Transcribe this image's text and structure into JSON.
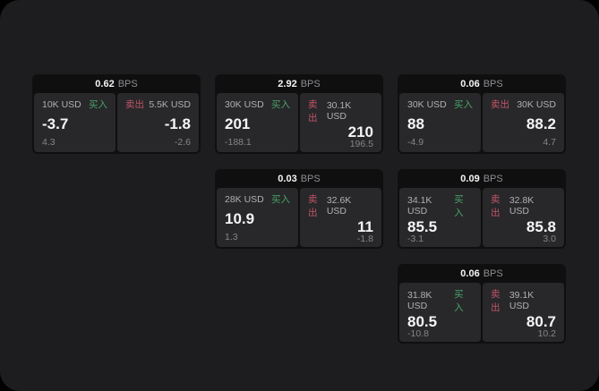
{
  "colors": {
    "surface": "#1d1d1f",
    "card": "#0f0f10",
    "panel": "#28282a",
    "label": "#b0b0b4",
    "value": "#f5f5f7",
    "sub": "#85858a",
    "bps": "#8e8e93",
    "buy": "#48a268",
    "sell": "#c25368"
  },
  "labels": {
    "bps_unit": "BPS",
    "buy": "买入",
    "sell": "卖出"
  },
  "cards": [
    {
      "row": 1,
      "col": 1,
      "bps": "0.62",
      "buy": {
        "amount": "10K USD",
        "price": "-3.7",
        "sub": "4.3"
      },
      "sell": {
        "amount": "5.5K USD",
        "price": "-1.8",
        "sub": "-2.6"
      }
    },
    {
      "row": 1,
      "col": 2,
      "bps": "2.92",
      "buy": {
        "amount": "30K USD",
        "price": "201",
        "sub": "-188.1"
      },
      "sell": {
        "amount": "30.1K USD",
        "price": "210",
        "sub": "196.5"
      }
    },
    {
      "row": 1,
      "col": 3,
      "bps": "0.06",
      "buy": {
        "amount": "30K USD",
        "price": "88",
        "sub": "-4.9"
      },
      "sell": {
        "amount": "30K USD",
        "price": "88.2",
        "sub": "4.7"
      }
    },
    {
      "row": 2,
      "col": 2,
      "bps": "0.03",
      "buy": {
        "amount": "28K USD",
        "price": "10.9",
        "sub": "1.3"
      },
      "sell": {
        "amount": "32.6K USD",
        "price": "11",
        "sub": "-1.8"
      }
    },
    {
      "row": 2,
      "col": 3,
      "bps": "0.09",
      "buy": {
        "amount": "34.1K USD",
        "price": "85.5",
        "sub": "-3.1"
      },
      "sell": {
        "amount": "32.8K USD",
        "price": "85.8",
        "sub": "3.0"
      }
    },
    {
      "row": 3,
      "col": 3,
      "bps": "0.06",
      "buy": {
        "amount": "31.8K USD",
        "price": "80.5",
        "sub": "-10.8"
      },
      "sell": {
        "amount": "39.1K USD",
        "price": "80.7",
        "sub": "10.2"
      }
    }
  ]
}
